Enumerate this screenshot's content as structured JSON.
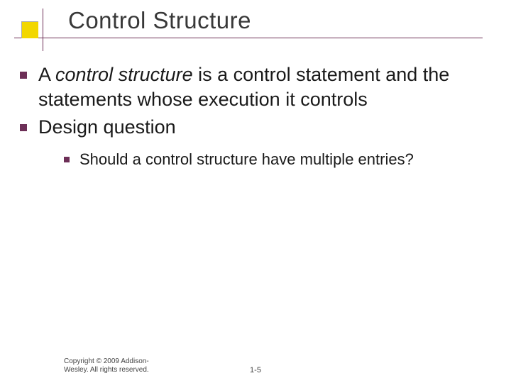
{
  "title": "Control Structure",
  "bullets": {
    "l1": [
      {
        "prefix": "A ",
        "italic": "control structure",
        "rest": " is a control statement and the statements whose execution it controls"
      },
      {
        "prefix": "Design question",
        "italic": "",
        "rest": ""
      }
    ],
    "l2": [
      {
        "text": "Should a control structure have multiple entries?"
      }
    ]
  },
  "footer": {
    "copyright_line1": "Copyright © 2009 Addison-",
    "copyright_line2": "Wesley. All rights reserved.",
    "page": "1-5"
  },
  "colors": {
    "accent_square": "#f2d700",
    "rule": "#6d2f57",
    "bullet": "#6d2f57",
    "text": "#1a1a1a",
    "title": "#383838"
  }
}
